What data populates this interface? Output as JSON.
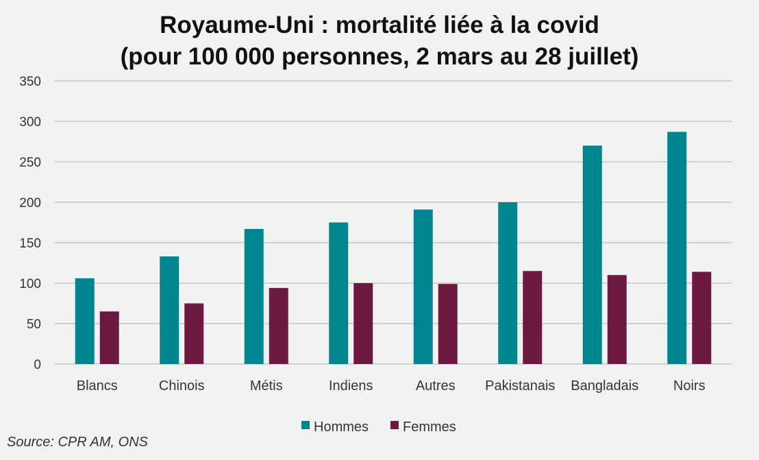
{
  "chart_data": {
    "type": "bar",
    "title": "Royaume-Uni : mortalité liée à la covid",
    "subtitle": "(pour 100 000 personnes, 2 mars au 28 juillet)",
    "categories": [
      "Blancs",
      "Chinois",
      "Métis",
      "Indiens",
      "Autres",
      "Pakistanais",
      "Bangladais",
      "Noirs"
    ],
    "series": [
      {
        "name": "Hommes",
        "color": "#00868f",
        "values": [
          106,
          133,
          167,
          175,
          191,
          200,
          270,
          287
        ]
      },
      {
        "name": "Femmes",
        "color": "#6d1a42",
        "values": [
          65,
          75,
          94,
          100,
          99,
          115,
          110,
          114
        ]
      }
    ],
    "ylim": [
      0,
      350
    ],
    "yticks": [
      0,
      50,
      100,
      150,
      200,
      250,
      300,
      350
    ],
    "grid": true,
    "legend_position": "bottom"
  },
  "source": "Source: CPR AM, ONS"
}
